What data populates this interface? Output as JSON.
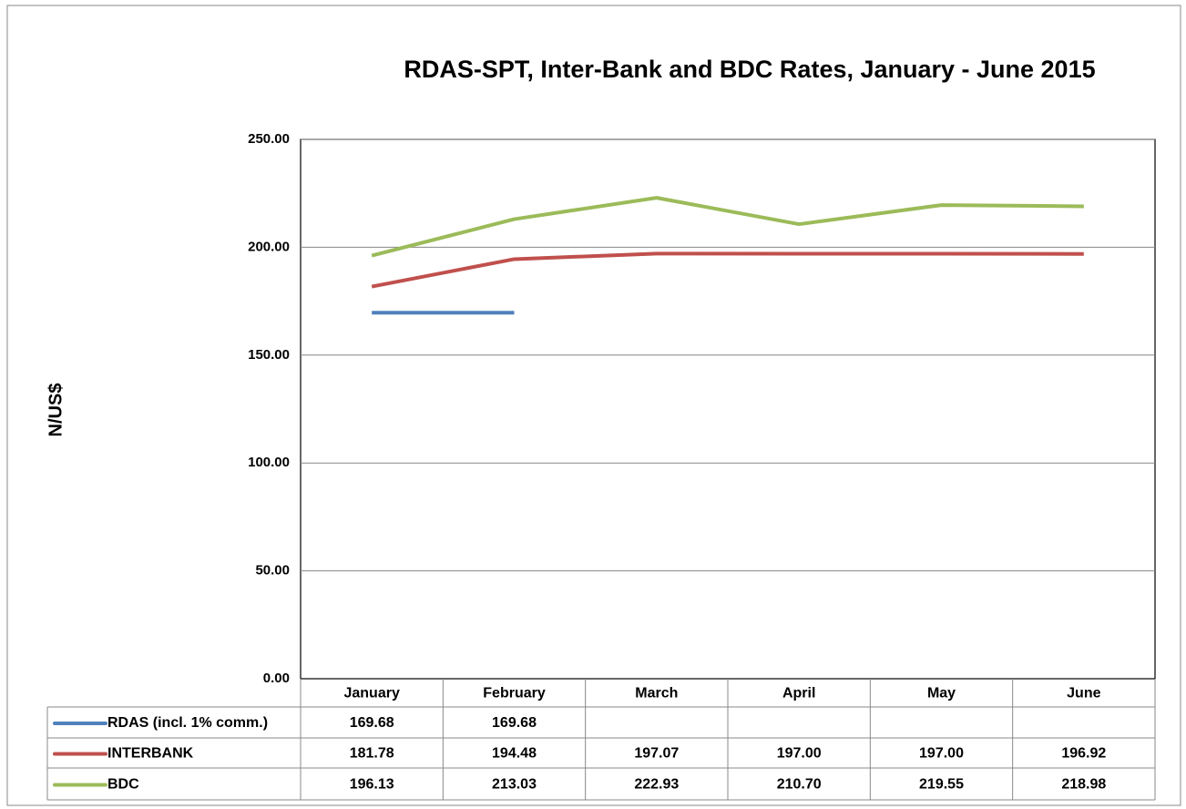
{
  "chart_data": {
    "type": "line",
    "title": "RDAS-SPT, Inter-Bank and BDC Rates, January - June 2015",
    "y_label": "N/US$",
    "categories": [
      "January",
      "February",
      "March",
      "April",
      "May",
      "June"
    ],
    "series": [
      {
        "name": "RDAS (incl. 1% comm.)",
        "color": "#4f81bd",
        "values": [
          169.68,
          169.68,
          null,
          null,
          null,
          null
        ],
        "value_labels": [
          "169.68",
          "169.68",
          null,
          null,
          null,
          null
        ]
      },
      {
        "name": "INTERBANK",
        "color": "#c0504d",
        "values": [
          181.78,
          194.48,
          197.07,
          197.0,
          197.0,
          196.92
        ],
        "value_labels": [
          "181.78",
          "194.48",
          "197.07",
          "197.00",
          "197.00",
          "196.92"
        ]
      },
      {
        "name": "BDC",
        "color": "#9bbb59",
        "values": [
          196.13,
          213.03,
          222.93,
          210.7,
          219.55,
          218.98
        ],
        "value_labels": [
          "196.13",
          "213.03",
          "222.93",
          "210.70",
          "219.55",
          "218.98"
        ]
      }
    ],
    "ylim": [
      0,
      250
    ],
    "yticks": [
      {
        "value": 0,
        "label": "0.00"
      },
      {
        "value": 50,
        "label": "50.00"
      },
      {
        "value": 100,
        "label": "100.00"
      },
      {
        "value": 150,
        "label": "150.00"
      },
      {
        "value": 200,
        "label": "200.00"
      },
      {
        "value": 250,
        "label": "250.00"
      }
    ],
    "grid": true
  }
}
